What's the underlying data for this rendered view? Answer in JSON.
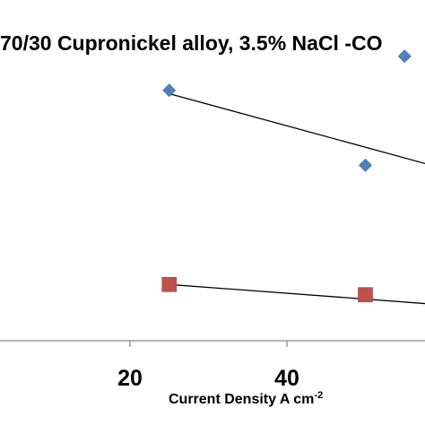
{
  "chart_data": {
    "type": "scatter",
    "title": "70/30 Cupronickel alloy, 3.5% NaCl -CO",
    "xlabel": "Current Density A cm",
    "xlabel_superscript": "-2",
    "ylabel": "",
    "xlim": [
      0,
      60
    ],
    "ylim": [
      0,
      1
    ],
    "x_ticks": [
      20,
      40
    ],
    "x_tick_labels": [
      "20",
      "40"
    ],
    "grid": false,
    "legend": "none",
    "series": [
      {
        "marker": "diamond",
        "color": "#4F81BD",
        "x": [
          25,
          50,
          55
        ],
        "y": [
          0.735,
          0.515,
          0.835
        ],
        "trendline": {
          "x": [
            25,
            60
          ],
          "y": [
            0.725,
            0.505
          ]
        }
      },
      {
        "marker": "square",
        "color": "#C0504D",
        "x": [
          25,
          50
        ],
        "y": [
          0.165,
          0.135
        ],
        "trendline": {
          "x": [
            25,
            60
          ],
          "y": [
            0.165,
            0.105
          ]
        }
      }
    ]
  }
}
